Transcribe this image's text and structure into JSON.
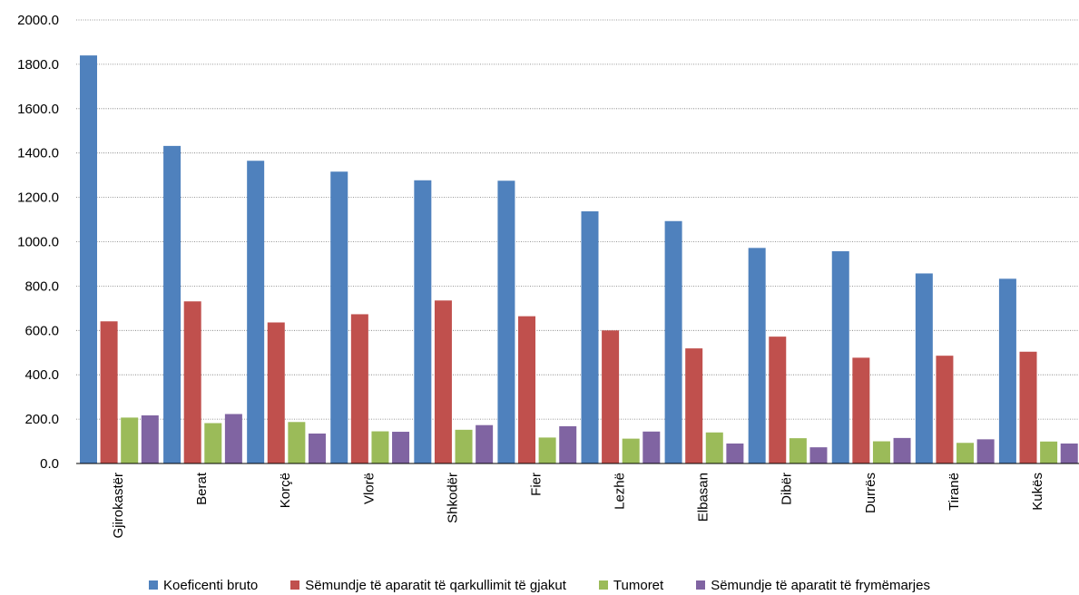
{
  "chart_data": {
    "type": "bar",
    "title": "",
    "xlabel": "",
    "ylabel": "",
    "ylim": [
      0,
      2000
    ],
    "ytick_step": 200,
    "ytick_format": "0.0",
    "grid": "horizontal dotted",
    "legend_position": "bottom",
    "categories": [
      "Gjirokastër",
      "Berat",
      "Korçë",
      "Vlorë",
      "Shkodër",
      "Fier",
      "Lezhë",
      "Elbasan",
      "Dibër",
      "Durrës",
      "Tiranë",
      "Kukës"
    ],
    "series": [
      {
        "name": "Koeficenti bruto",
        "color": "#4F81BD",
        "values": [
          1840,
          1432,
          1365,
          1316,
          1277,
          1275,
          1137,
          1093,
          972,
          957,
          857,
          833
        ]
      },
      {
        "name": "Sëmundje të aparatit të qarkullimit të gjakut",
        "color": "#C0504D",
        "values": [
          641,
          731,
          636,
          673,
          735,
          664,
          600,
          519,
          572,
          477,
          486,
          504
        ]
      },
      {
        "name": "Tumoret",
        "color": "#9BBB59",
        "values": [
          207,
          182,
          187,
          145,
          152,
          117,
          112,
          140,
          114,
          100,
          93,
          99
        ]
      },
      {
        "name": "Sëmundje të aparatit të frymëmarjes",
        "color": "#8064A2",
        "values": [
          217,
          223,
          135,
          143,
          173,
          168,
          144,
          90,
          73,
          115,
          109,
          90
        ]
      }
    ]
  }
}
